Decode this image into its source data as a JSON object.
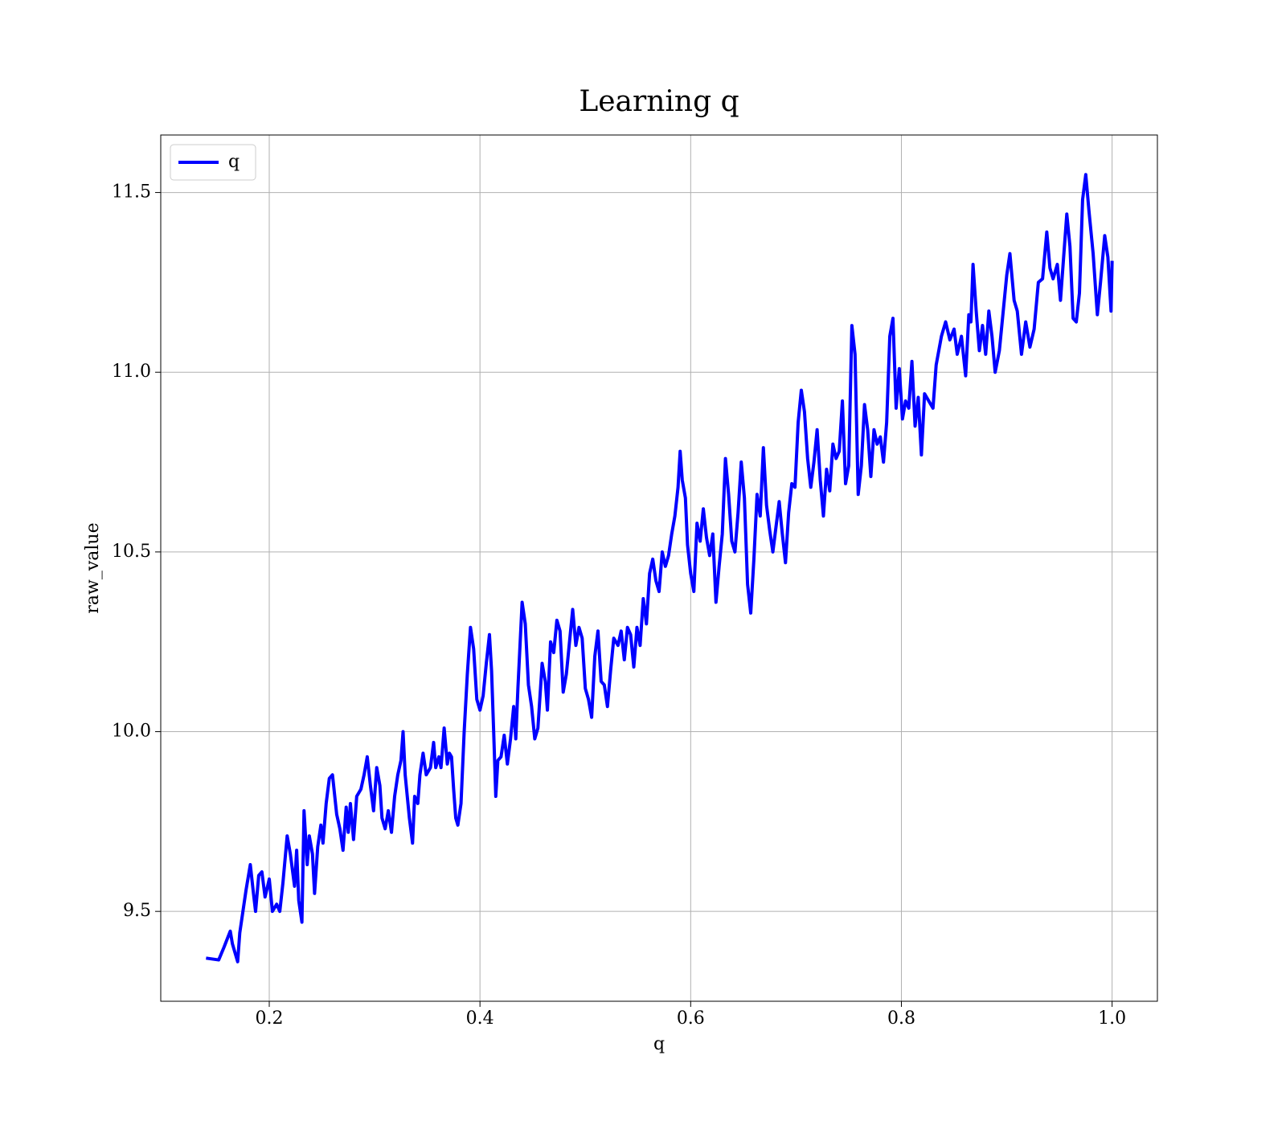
{
  "chart_data": {
    "type": "line",
    "title": "Learning q",
    "x_label": "q",
    "y_label": "raw_value",
    "xlim": [
      0.097,
      1.043
    ],
    "ylim": [
      9.25,
      11.66
    ],
    "xticks": [
      0.2,
      0.4,
      0.6,
      0.8,
      {
        "value": 1,
        "label": "1.0"
      }
    ],
    "yticks": [
      9.5,
      {
        "value": 10,
        "label": "10.0"
      },
      10.5,
      {
        "value": 11,
        "label": "11.0"
      },
      11.5
    ],
    "grid": true,
    "legend": "upper left",
    "x": [
      0.14,
      0.152,
      0.157,
      0.163,
      0.165,
      0.17,
      0.172,
      0.178,
      0.182,
      0.185,
      0.187,
      0.19,
      0.193,
      0.196,
      0.2,
      0.203,
      0.207,
      0.21,
      0.213,
      0.217,
      0.22,
      0.224,
      0.226,
      0.228,
      0.231,
      0.233,
      0.236,
      0.238,
      0.241,
      0.243,
      0.246,
      0.249,
      0.251,
      0.254,
      0.257,
      0.26,
      0.264,
      0.267,
      0.27,
      0.273,
      0.275,
      0.277,
      0.28,
      0.283,
      0.287,
      0.29,
      0.293,
      0.296,
      0.299,
      0.302,
      0.305,
      0.307,
      0.31,
      0.313,
      0.316,
      0.319,
      0.322,
      0.325,
      0.327,
      0.329,
      0.331,
      0.333,
      0.336,
      0.338,
      0.341,
      0.343,
      0.346,
      0.349,
      0.353,
      0.356,
      0.358,
      0.361,
      0.363,
      0.366,
      0.369,
      0.371,
      0.373,
      0.375,
      0.377,
      0.379,
      0.382,
      0.385,
      0.388,
      0.391,
      0.394,
      0.397,
      0.4,
      0.403,
      0.406,
      0.409,
      0.411,
      0.413,
      0.415,
      0.417,
      0.42,
      0.423,
      0.426,
      0.429,
      0.432,
      0.434,
      0.436,
      0.438,
      0.44,
      0.443,
      0.446,
      0.449,
      0.452,
      0.455,
      0.459,
      0.462,
      0.464,
      0.467,
      0.47,
      0.473,
      0.476,
      0.479,
      0.482,
      0.485,
      0.488,
      0.491,
      0.494,
      0.497,
      0.5,
      0.503,
      0.506,
      0.509,
      0.512,
      0.515,
      0.518,
      0.521,
      0.524,
      0.527,
      0.531,
      0.534,
      0.537,
      0.54,
      0.543,
      0.546,
      0.549,
      0.552,
      0.555,
      0.558,
      0.561,
      0.564,
      0.567,
      0.57,
      0.573,
      0.576,
      0.579,
      0.582,
      0.585,
      0.588,
      0.59,
      0.592,
      0.595,
      0.597,
      0.6,
      0.603,
      0.606,
      0.609,
      0.612,
      0.615,
      0.618,
      0.621,
      0.624,
      0.627,
      0.63,
      0.633,
      0.636,
      0.639,
      0.642,
      0.645,
      0.648,
      0.651,
      0.654,
      0.657,
      0.66,
      0.663,
      0.666,
      0.669,
      0.672,
      0.675,
      0.678,
      0.681,
      0.684,
      0.687,
      0.69,
      0.693,
      0.696,
      0.699,
      0.702,
      0.705,
      0.708,
      0.711,
      0.714,
      0.717,
      0.72,
      0.723,
      0.726,
      0.729,
      0.732,
      0.735,
      0.738,
      0.741,
      0.744,
      0.747,
      0.75,
      0.753,
      0.756,
      0.759,
      0.762,
      0.765,
      0.768,
      0.771,
      0.774,
      0.777,
      0.78,
      0.783,
      0.786,
      0.789,
      0.792,
      0.795,
      0.798,
      0.801,
      0.804,
      0.807,
      0.81,
      0.813,
      0.816,
      0.819,
      0.822,
      0.83,
      0.833,
      0.838,
      0.842,
      0.846,
      0.85,
      0.853,
      0.857,
      0.861,
      0.864,
      0.866,
      0.868,
      0.871,
      0.874,
      0.877,
      0.88,
      0.883,
      0.886,
      0.889,
      0.893,
      0.9,
      0.903,
      0.907,
      0.91,
      0.914,
      0.918,
      0.922,
      0.926,
      0.93,
      0.934,
      0.938,
      0.941,
      0.944,
      0.948,
      0.951,
      0.954,
      0.957,
      0.96,
      0.963,
      0.966,
      0.969,
      0.972,
      0.975,
      0.978,
      0.982,
      0.986,
      0.989,
      0.993,
      0.996,
      0.999,
      1.0
    ],
    "series": [
      {
        "name": "q",
        "color": "#0000ff",
        "values": [
          9.37,
          9.365,
          9.4,
          9.445,
          9.41,
          9.36,
          9.44,
          9.56,
          9.63,
          9.55,
          9.5,
          9.6,
          9.61,
          9.54,
          9.59,
          9.5,
          9.52,
          9.5,
          9.58,
          9.71,
          9.66,
          9.57,
          9.67,
          9.53,
          9.47,
          9.78,
          9.63,
          9.71,
          9.66,
          9.55,
          9.68,
          9.74,
          9.69,
          9.8,
          9.87,
          9.88,
          9.77,
          9.73,
          9.67,
          9.79,
          9.72,
          9.8,
          9.7,
          9.82,
          9.84,
          9.88,
          9.93,
          9.85,
          9.78,
          9.9,
          9.85,
          9.76,
          9.73,
          9.78,
          9.72,
          9.82,
          9.88,
          9.92,
          10.0,
          9.88,
          9.82,
          9.76,
          9.69,
          9.82,
          9.8,
          9.88,
          9.94,
          9.88,
          9.9,
          9.97,
          9.9,
          9.93,
          9.9,
          10.01,
          9.91,
          9.94,
          9.93,
          9.84,
          9.76,
          9.74,
          9.8,
          10.0,
          10.16,
          10.29,
          10.23,
          10.09,
          10.06,
          10.1,
          10.19,
          10.27,
          10.17,
          10.0,
          9.82,
          9.92,
          9.93,
          9.99,
          9.91,
          9.98,
          10.07,
          9.98,
          10.12,
          10.24,
          10.36,
          10.3,
          10.13,
          10.07,
          9.98,
          10.01,
          10.19,
          10.14,
          10.06,
          10.25,
          10.22,
          10.31,
          10.28,
          10.11,
          10.16,
          10.25,
          10.34,
          10.24,
          10.29,
          10.26,
          10.12,
          10.09,
          10.04,
          10.21,
          10.28,
          10.14,
          10.13,
          10.07,
          10.17,
          10.26,
          10.24,
          10.28,
          10.2,
          10.29,
          10.27,
          10.18,
          10.29,
          10.24,
          10.37,
          10.3,
          10.44,
          10.48,
          10.42,
          10.39,
          10.5,
          10.46,
          10.49,
          10.55,
          10.6,
          10.68,
          10.78,
          10.7,
          10.65,
          10.52,
          10.44,
          10.39,
          10.58,
          10.53,
          10.62,
          10.54,
          10.49,
          10.55,
          10.36,
          10.46,
          10.55,
          10.76,
          10.66,
          10.53,
          10.5,
          10.61,
          10.75,
          10.65,
          10.41,
          10.33,
          10.48,
          10.66,
          10.6,
          10.79,
          10.63,
          10.56,
          10.5,
          10.57,
          10.64,
          10.55,
          10.47,
          10.61,
          10.69,
          10.68,
          10.86,
          10.95,
          10.89,
          10.76,
          10.68,
          10.75,
          10.84,
          10.7,
          10.6,
          10.73,
          10.67,
          10.8,
          10.76,
          10.78,
          10.92,
          10.69,
          10.74,
          11.13,
          11.05,
          10.66,
          10.74,
          10.91,
          10.84,
          10.71,
          10.84,
          10.8,
          10.82,
          10.75,
          10.86,
          11.1,
          11.15,
          10.9,
          11.01,
          10.87,
          10.92,
          10.9,
          11.03,
          10.85,
          10.93,
          10.77,
          10.94,
          10.9,
          11.02,
          11.1,
          11.14,
          11.09,
          11.12,
          11.05,
          11.1,
          10.99,
          11.16,
          11.14,
          11.3,
          11.17,
          11.06,
          11.13,
          11.05,
          11.17,
          11.1,
          11.0,
          11.06,
          11.27,
          11.33,
          11.2,
          11.17,
          11.05,
          11.14,
          11.07,
          11.12,
          11.25,
          11.26,
          11.39,
          11.29,
          11.26,
          11.3,
          11.2,
          11.32,
          11.44,
          11.35,
          11.15,
          11.14,
          11.22,
          11.48,
          11.55,
          11.45,
          11.33,
          11.16,
          11.25,
          11.38,
          11.32,
          11.17,
          11.31
        ]
      }
    ]
  }
}
